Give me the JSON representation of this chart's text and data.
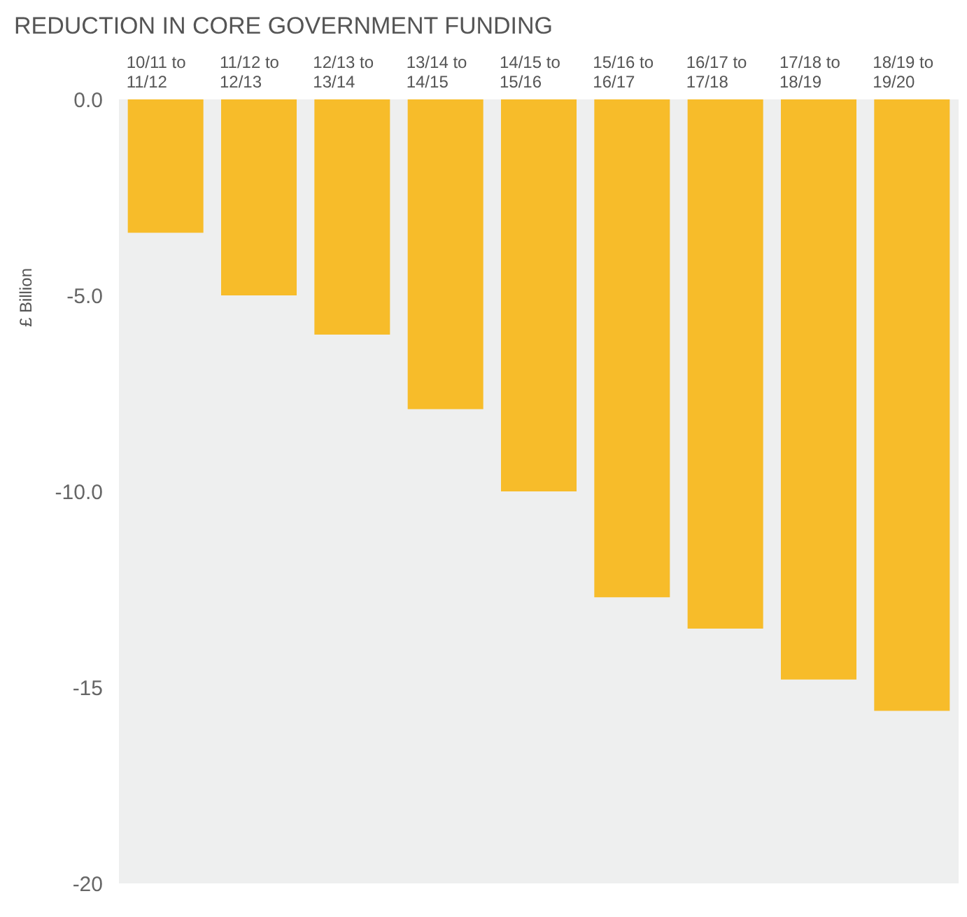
{
  "chart_data": {
    "type": "bar",
    "title": "REDUCTION IN CORE GOVERNMENT FUNDING",
    "ylabel": "£ Billion",
    "categories": [
      "10/11 to 11/12",
      "11/12 to 12/13",
      "12/13 to 13/14",
      "13/14 to 14/15",
      "14/15 to 15/16",
      "15/16 to 16/17",
      "16/17 to 17/18",
      "17/18 to 18/19",
      "18/19 to 19/20"
    ],
    "values": [
      -3.4,
      -5.0,
      -6.0,
      -7.9,
      -10.0,
      -12.7,
      -13.5,
      -14.8,
      -15.6
    ],
    "color": "#f7bc2a",
    "ylim": [
      -20,
      0
    ],
    "yticks": [
      {
        "value": 0,
        "label": "0.0"
      },
      {
        "value": -5,
        "label": "-5.0"
      },
      {
        "value": -10,
        "label": "-10.0"
      },
      -15,
      -20
    ]
  }
}
